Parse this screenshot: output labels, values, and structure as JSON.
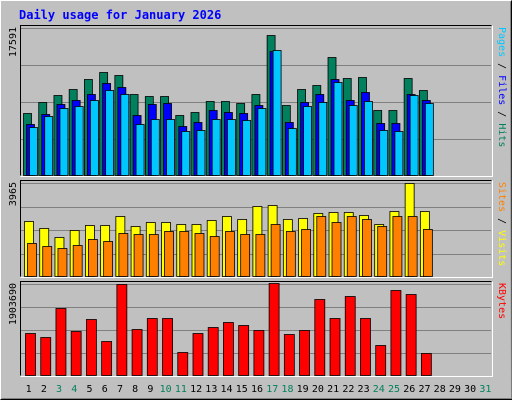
{
  "title": "Daily usage for January 2026",
  "colors": {
    "background": "#c0c0c0",
    "plot_bg": "#c0c0c0",
    "grid": "#808080",
    "title": "#0000ff",
    "hits": "#00805c",
    "files": "#0000ff",
    "pages": "#00c8ff",
    "visits": "#ffff00",
    "sites": "#ff8000",
    "kbytes": "#ff0000",
    "day_weekday": "#000000",
    "day_weekend": "#00805c",
    "bar_outline": "#000000"
  },
  "chart_data": [
    {
      "type": "bar",
      "panel": "top",
      "ymax_label": "17591",
      "ylim": [
        0,
        17591
      ],
      "right_label_parts": [
        {
          "text": "Pages",
          "color": "#00c8ff"
        },
        {
          "text": " / ",
          "color": "#000000"
        },
        {
          "text": "Files",
          "color": "#0000ff"
        },
        {
          "text": " / ",
          "color": "#000000"
        },
        {
          "text": "Hits",
          "color": "#00805c"
        }
      ],
      "series": [
        {
          "name": "Hits",
          "color": "#00805c",
          "values": [
            7500,
            8800,
            9600,
            10400,
            11500,
            12400,
            12000,
            9700,
            9500,
            9500,
            7200,
            7600,
            8900,
            8900,
            8700,
            9700,
            16800,
            8400,
            10300,
            10800,
            14100,
            11600,
            11800,
            7900,
            7800,
            11700,
            10200
          ]
        },
        {
          "name": "Files",
          "color": "#0000ff",
          "values": [
            6200,
            7400,
            8600,
            9000,
            9800,
            11000,
            10600,
            7200,
            8600,
            8700,
            6000,
            6400,
            7900,
            7600,
            7500,
            8400,
            14800,
            6400,
            8800,
            9800,
            11500,
            9000,
            10000,
            6300,
            6300,
            9700,
            9000
          ]
        },
        {
          "name": "Pages",
          "color": "#00c8ff",
          "values": [
            5800,
            7100,
            8100,
            8300,
            9000,
            10200,
            9700,
            6200,
            6800,
            6800,
            5300,
            5500,
            6800,
            6800,
            6600,
            8100,
            15000,
            5700,
            8300,
            8800,
            11200,
            8400,
            8900,
            5500,
            5400,
            9600,
            8700
          ]
        }
      ]
    },
    {
      "type": "bar",
      "panel": "middle",
      "ymax_label": "3965",
      "ylim": [
        0,
        3965
      ],
      "right_label_parts": [
        {
          "text": "Sites",
          "color": "#ff8000"
        },
        {
          "text": " / ",
          "color": "#000000"
        },
        {
          "text": "Visits",
          "color": "#ffff00"
        }
      ],
      "series": [
        {
          "name": "Visits",
          "color": "#ffff00",
          "values": [
            2360,
            2070,
            1700,
            2000,
            2200,
            2200,
            2560,
            2170,
            2300,
            2300,
            2240,
            2220,
            2400,
            2560,
            2430,
            3000,
            3020,
            2430,
            2500,
            2690,
            2760,
            2760,
            2630,
            2230,
            2800,
            3960,
            2800
          ]
        },
        {
          "name": "Sites",
          "color": "#ff8000",
          "values": [
            1430,
            1300,
            1210,
            1370,
            1600,
            1500,
            1870,
            1830,
            1830,
            1930,
            1930,
            1870,
            1730,
            1930,
            1800,
            1800,
            2230,
            1930,
            2030,
            2560,
            2300,
            2570,
            2430,
            2160,
            2570,
            2560,
            2030
          ]
        }
      ]
    },
    {
      "type": "bar",
      "panel": "bottom",
      "ymax_label": "1903690",
      "ylim": [
        0,
        1903690
      ],
      "right_label_parts": [
        {
          "text": "KBytes",
          "color": "#ff0000"
        }
      ],
      "series": [
        {
          "name": "KBytes",
          "color": "#ff0000",
          "values": [
            880000,
            800000,
            1400000,
            930000,
            1180000,
            720000,
            1910000,
            970000,
            1200000,
            1200000,
            500000,
            900000,
            1020000,
            1110000,
            1060000,
            960000,
            1920000,
            860000,
            960000,
            1600000,
            1190000,
            1660000,
            1200000,
            650000,
            1780000,
            1700000,
            480000
          ]
        }
      ]
    }
  ],
  "days": [
    "1",
    "2",
    "3",
    "4",
    "5",
    "6",
    "7",
    "8",
    "9",
    "10",
    "11",
    "12",
    "13",
    "14",
    "15",
    "16",
    "17",
    "18",
    "19",
    "20",
    "21",
    "22",
    "23",
    "24",
    "25",
    "26",
    "27",
    "28",
    "29",
    "30",
    "31"
  ],
  "weekend_days": [
    "3",
    "4",
    "10",
    "11",
    "17",
    "18",
    "24",
    "25",
    "31"
  ]
}
